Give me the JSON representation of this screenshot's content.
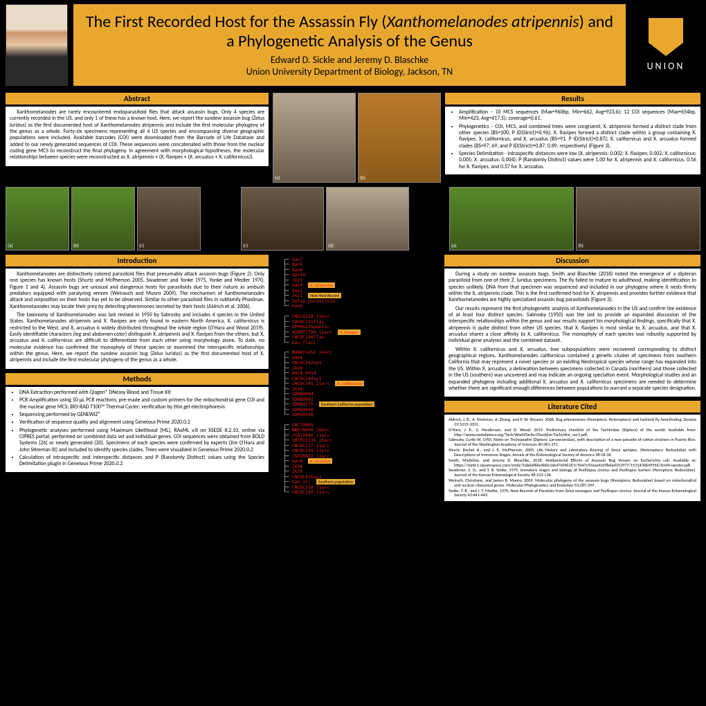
{
  "title": {
    "line1_pre": "The First Recorded Host for the Assassin Fly (",
    "line1_em": "Xanthomelanodes atripennis",
    "line1_post": ") and a Phylogenetic Analysis of the Genus",
    "authors": "Edward D. Sickle and Jeremy D. Blaschke",
    "affil": "Union University Department of Biology, Jackson, TN",
    "logo_text": "UNION"
  },
  "headers": {
    "abstract": "Abstract",
    "results": "Results",
    "introduction": "Introduction",
    "discussion": "Discussion",
    "methods": "Methods",
    "literature": "Literature Cited"
  },
  "abstract": "Xanthomelanodes are rarely encountered endoparasitoid flies that attack assassin bugs. Only 4 species are currently recorded in the US, and only 1 of these has a known host. Here, we report the sundew assassin bug (Zelus luridus) as the first documented host of Xanthomelanodes atripennis and include the first molecular phylogeny of the genus as a whole. Forty-six specimens representing all 4 US species and encompassing diverse geographic populations were included. Available barcodes (COI) were downloaded from the Barcode of Life Database and added to our newly generated sequences of COI. These sequences were concatenated with those from the nuclear coding gene MCS to reconstruct the final phylogeny. In agreement with morphological hypotheses, the molecular relationships between species were reconstructed as X. atripennis + (X. flavipes + (X. arcuatus + X. californicus)).",
  "results": [
    "Amplification – 10 MCS sequences (Max=960bp, Min=662, Avg=923.6); 12 COI sequences (Max=654bp, Min=423, Avg=617.5); coverage=0.61.",
    "Phylogenetics – COI, MCS, and combined trees were congruent; X. atripennis formed a distinct clade from other species (BS=100, P ID(Strict)=0.96); X. flavipes formed a distinct clade within a group containing X. flavipes, X. californicus, and X. arcuatus (BS=91, P ID(Strict)=0.87); X. californicus and X. arcuatus formed clades (BS=97, 69, and P ID(Strict)=0.87, 0.89, respectively) (Figure 3).",
    "Species Delimitation - intraspecific distances were low (X. atripennis: 0.002; X. flavipes: 0.002; X. californicus: 0.005; X. arcuatus: 0.004); P (Randomly Distinct) values were 1.00 for X. atripennis and X. californicus, 0.56 for X. flavipes, and 0.57 for X. arcuatus."
  ],
  "intro": {
    "p1": "Xanthomelanodes are distinctively colored parasitoid flies that presumably attack assassin bugs (Figure 2). Only one species has known hosts (Shurtz and McPherson 2005, Swadener and Yonke 1975, Yonke and Medler 1970, Figure 1 and 4). Assassin bugs are unusual and dangerous hosts for parasitoids due to their nature as ambush predators equipped with paralyzing venom (Weirauch and Munro 2009). The mechanism of Xanthomelanodes attack and oviposition on their hosts has yet to be observed. Similar to other parasitoid flies in subfamily Phasiinae, Xanthomelanodes may locate their prey by detecting pheromones secreted by their hosts (Aldrich et al. 2006).",
    "p2": "The taxonomy of Xanthomelanodes was last revised in 1950 by Sabrosky and includes 4 species in the United States. Xanthomelanodes atripennis and X. flavipes are only found in eastern North America, X. californicus is restricted to the West, and X. arcuatus is widely distributed throughout the whole region (O'Hara and Wood 2019). Easily identifiable characters (leg and abdomen color) distinguish X. atripennis and X. flavipes from the others, but X. arcuatus and X. californicus are difficult to differentiate from each other using morphology alone. To date, no molecular evidence has confirmed the monophyly of these species or examined the interspecific relationships within the genus. Here, we report the sundew assassin bug (Zelus luridus) as the first documented host of X. atripennis and include the first molecular phylogeny of the genus as a whole."
  },
  "methods": [
    "DNA Extraction performed with Qiagen® DNeasy Blood and Tissue Kit",
    "PCR Amplification using 50 µL PCR reactions; pre-made and custom primers for the mitochondrial gene COI and the nuclear gene MCS; BIO-RAD T100™ Thermal Cycler; verification by thin gel electrophoresis",
    "Sequencing performed by GENEWIZ®",
    "Verification of sequence quality and alignment using Geneious Prime 2020.0.2",
    "Phylogenetic analyses performed using Maximum Likelihood (ML), RAxML v.8 on XSEDE 8.2.10, online via CIPRES portal; performed on combined data set and individual genes. COI sequences were obtained from BOLD Systems (26) or newly generated (20). Specimens of each species were confirmed by experts (Jim O'Hara and John Stireman III) and included to identify species clades. Trees were visualized in Geneious Prime 2020.0.2",
    "Calculation of intraspecific and interspecific distances and P (Randomly Distinct) values using the Species Delimitation plugin in Geneious Prime 2020.0.2"
  ],
  "tree": {
    "atripennis": [
      "Xan7",
      "Xan5",
      "Xan6",
      "Xan10",
      "JX23",
      "Xan4",
      "Xan3",
      "JX21",
      "Zelus_parasitoid",
      "Xan8"
    ],
    "atripennis_label": "X. atripennis",
    "atripennis_note1": "New Host",
    "atripennis_note2": "Record",
    "flavipes": [
      "CNSLQ158_13arc",
      "CNCDC235flav",
      "OPPKG135public",
      "ASDMT1789_11arc",
      "CNCDC236flav",
      "Xan_flavi"
    ],
    "flavipes_label": "X. flavipes",
    "californicus": [
      "NGNAY1452_14arc",
      "OH04",
      "CNCDC242sp1",
      "JX09",
      "OH10_0914",
      "CNCDC244sp1",
      "CNCDC241_11arc",
      "JX10",
      "SDRBO084",
      "SDRBO091",
      "SDRBH275",
      "SDRBO090",
      "SDRVD199"
    ],
    "californicus_label": "X. californicus",
    "californicus_note": "Southern California population",
    "arcuatus": [
      "CNCTO069",
      "BBDCN009_10arc",
      "JSDIS066_11arc",
      "SMTPO1535_15arc",
      "CNCDC237_11arc",
      "CNCDC239_11arc",
      "JSDIR892_11arc",
      "Xan9",
      "JX04",
      "JX29",
      "CNCDC435sp1",
      "Xan_arc",
      "CNCDC238_11arc",
      "CNCDC240_11arc"
    ],
    "arcuatus_label": "X. arcuatus",
    "arcuatus_note": "Southern population"
  },
  "discussion": {
    "p1": "During a study on sundew assassin bugs, Smith and Blaschke (2018) noted the emergence of a dipteran parasitoid from one of their Z. luridus specimens. The fly failed to mature to adulthood, making identification to species unlikely. DNA from that specimen was sequenced and included in our phylogeny where it nests firmly within the X. atripennis clade. This is the first confirmed host for X. atripennis and provides further evidence that Xanthomelanodes are highly specialized assassin bug parasitoids (Figure 3).",
    "p2": "Our results represent the first phylogenetic analysis of Xanthomelanodes in the US and confirm the existence of at least four distinct species. Sabrosky (1950) was the last to provide an expanded discussion of the interspecific relationships within the genus and our results support his morphological findings, specifically that X. atripennis is quite distinct from other US species, that X. flavipes is most similar to X. arcuatus, and that X. arcuatus shares a close affinity to X. californicus. The monophyly of each species was robustly supported by individual gene analyses and the combined dataset.",
    "p3": "Within X. californicus and X. arcuatus, two subpopulations were recovered corresponding to distinct geographical regions. Xanthomelanodes californicus contained a genetic cluster of specimens from southern California that may represent a novel species or an existing Neotropical species whose range has expanded into the US. Within X. arcuatus, a delineation between specimens collected in Canada (northern) and those collected in the US (southern) was uncovered and may indicate an ongoing speciation event. Morphological studies and an expanded phylogeny including additional X. arcuatus and X. californicus specimens are needed to determine whether there are significant enough differences between populations to warrant a separate species designation."
  },
  "lit": [
    "Aldrich, J. R., A. Khrimian, A. Zhang, and P. W. Shearer. 2006. Bug pheromones (Hemiptera, Heteroptera) and tachinid fly host-finding. Denisia 19:1015-1031.",
    "O'Hara, J. E., S. Henderson, and D. Wood. 2019. Preliminary checklist of the Tachinidae (Diptera) of the world. Available from: http://www.nadsdiptera.org/Tach/WorldTachs/Checklist/Tachchlist_ver1.pdf.",
    "Sabrosky, Curtis W. 1950. Notes on Trichopodini (Diptera: Larvaevoridae), with description of a new parasite of cotton strainers in Puerto Rico. Journal of the Washington Academy of Sciences 40:361-371.",
    "Shurtz, Rachel A., and J. E. McPherson. 2005. Life History and Laboratory Rearing of Sinea spinipes. (Heteroptera: Reduviidae) with Descriptions of Immature Stages. Annals of the Entomological Society of America 98:18-36.",
    "Smith, Madeline, and Jeremy D. Blaschke. 2018. Antibacterial Effects of Assassin Bug Venom on Escherichia coli. Available at: https://static1.squarespace.com/static/5abdaf66e4b0e1de47ef4616/t/5b47c59aaa4a99bdad312977/1531430649556/Smith+poster.pdf.",
    "Swadener, S. O., and T. R. Yonke. 1975. Immature stages and biology of Pselliopus cinctus and Pselliopus barberi (Hemiptera: Reduviidae). Journal of the Kansas Entomological Society 48:123-126.",
    "Weirach, Christiane, and James B. Munro. 2009. Molecular phylogeny of the assassin bugs (Hemiptera: Reduviidae) based on mitochondrial and nuclear ribosomal genes. Molecular Phylogenetics and Evolution 53:287-299.",
    "Yonke, T. R., and J. T. Medler. 1970. New Records of Parasites from Zelus exsanguis and Pselliopus cinctus. Journal of the Kansas Entomological Society 43:441-443."
  ],
  "photo_labels": [
    "(a)",
    "(b)",
    "(c)",
    "(d)",
    "(a)",
    "(b)",
    "(a)",
    "(b)",
    "(c)",
    "(d)"
  ],
  "colors": {
    "accent": "#e8a830",
    "bg": "#000000",
    "panel": "#ffffff",
    "tree_red": "#e82020"
  }
}
